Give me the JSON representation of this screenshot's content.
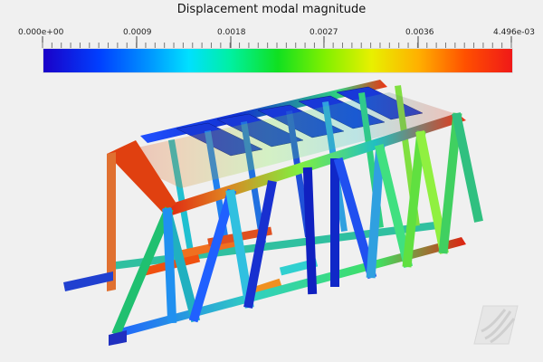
{
  "window": {
    "title": "Displacement modal magnitude"
  },
  "colorbar": {
    "labels": [
      "0.000e+00",
      "0.0009",
      "0.0018",
      "0.0027",
      "0.0036",
      "4.496e-03"
    ],
    "min": 0,
    "max": 0.004496,
    "colors": [
      "#1a00c8",
      "#0040ff",
      "#0090ff",
      "#00e0ff",
      "#00f0a0",
      "#10e020",
      "#80f000",
      "#e8f000",
      "#ffb000",
      "#ff5000",
      "#f01818"
    ]
  },
  "scene": {
    "object": "truss-bridge",
    "background": "#f0f0f0"
  },
  "logo": {
    "icon": "logo-icon"
  }
}
